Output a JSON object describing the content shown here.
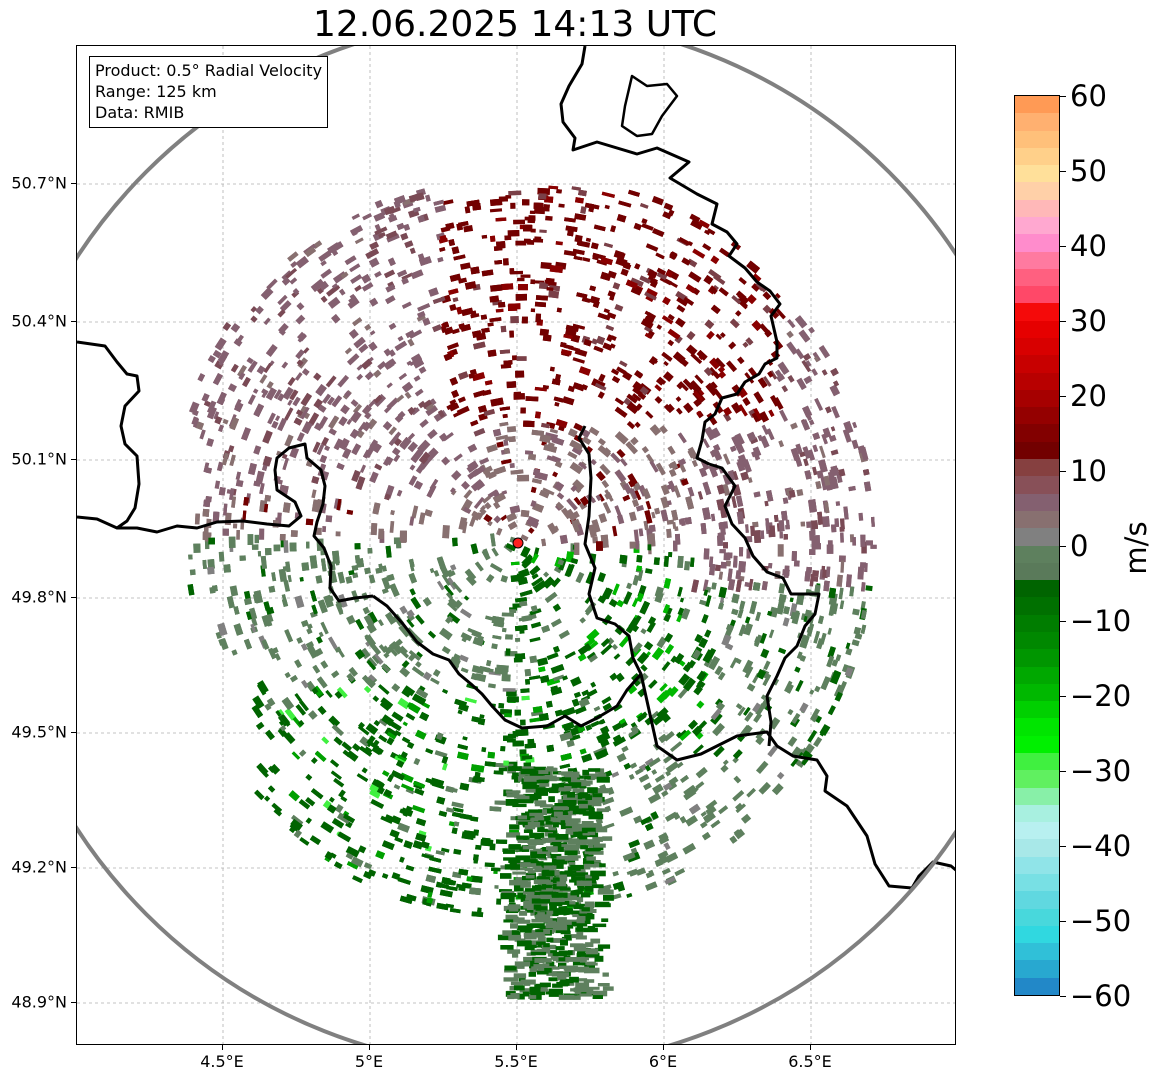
{
  "title": "12.06.2025 14:13 UTC",
  "info": {
    "product": "Product: 0.5° Radial Velocity",
    "range": "Range: 125 km",
    "source": "Data: RMIB"
  },
  "map": {
    "lat_labels": [
      "50.7°N",
      "50.4°N",
      "50.1°N",
      "49.8°N",
      "49.5°N",
      "49.2°N",
      "48.9°N"
    ],
    "lon_labels": [
      "4.5°E",
      "5°E",
      "5.5°E",
      "6°E",
      "6.5°E"
    ],
    "radar_site": {
      "lon": 5.505,
      "lat": 49.914
    },
    "range_ring_km": 125,
    "colors": {
      "range_ring": "#808080",
      "borders": "#000000",
      "grid": "#b0b0b0",
      "radar_marker": "#ff2020"
    }
  },
  "colorbar": {
    "unit": "m/s",
    "min": -60,
    "max": 60,
    "tick_labels": [
      "60",
      "50",
      "40",
      "30",
      "20",
      "10",
      "0",
      "−10",
      "−20",
      "−30",
      "−40",
      "−50",
      "−60"
    ],
    "tick_values": [
      60,
      50,
      40,
      30,
      20,
      10,
      0,
      -10,
      -20,
      -30,
      -40,
      -50,
      -60
    ],
    "colors_top_to_bottom": [
      "#ff9a55",
      "#ffb070",
      "#ffc07a",
      "#ffd08a",
      "#ffe09a",
      "#ffd0a8",
      "#ffb8b8",
      "#ffa8d0",
      "#ff8ccc",
      "#ff7aa0",
      "#ff6080",
      "#ff4868",
      "#f50a0a",
      "#e60000",
      "#d80000",
      "#c80000",
      "#b80000",
      "#a60000",
      "#940000",
      "#820000",
      "#720000",
      "#864040",
      "#885058",
      "#846070",
      "#887070",
      "#808080",
      "#5e805e",
      "#5a7a5a",
      "#006400",
      "#007000",
      "#007d00",
      "#008800",
      "#009600",
      "#00a800",
      "#00b800",
      "#00d000",
      "#00e500",
      "#00f000",
      "#40f040",
      "#60f060",
      "#88f0a8",
      "#a8f0e0",
      "#b8f0f0",
      "#a8e8e8",
      "#90e4e8",
      "#78e0e4",
      "#60d8e0",
      "#48d8dc",
      "#30d8e0",
      "#30c0d8",
      "#28a8d0",
      "#2288c8"
    ]
  }
}
